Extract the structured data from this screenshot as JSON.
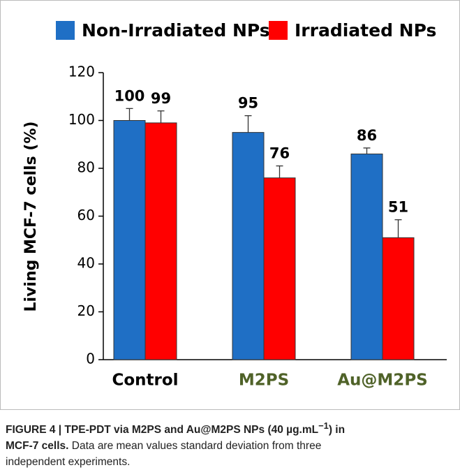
{
  "chart_data": {
    "type": "bar",
    "categories": [
      "Control",
      "M2PS",
      "Au@M2PS"
    ],
    "category_colors": [
      "#000000",
      "#4f6228",
      "#4f6228"
    ],
    "series": [
      {
        "name": "Non-Irradiated NPs",
        "color": "#1f6fc5",
        "values": [
          100,
          95,
          86
        ],
        "errors": [
          5,
          7,
          2.5
        ]
      },
      {
        "name": "Irradiated NPs",
        "color": "#ff0000",
        "values": [
          99,
          76,
          51
        ],
        "errors": [
          5,
          5,
          7.5
        ]
      }
    ],
    "ylabel": "Living MCF-7 cells (%)",
    "ylim": [
      0,
      120
    ],
    "yticks": [
      0,
      20,
      40,
      60,
      80,
      100,
      120
    ],
    "legend": "top"
  },
  "caption": {
    "bold": "FIGURE 4 | TPE-PDT via M2PS and Au@M2PS NPs (40 µg.mL",
    "bold_sup": "−1",
    "bold_end": ") in MCF-7 cells.",
    "text": "Data are mean values standard deviation from three independent experiments."
  }
}
